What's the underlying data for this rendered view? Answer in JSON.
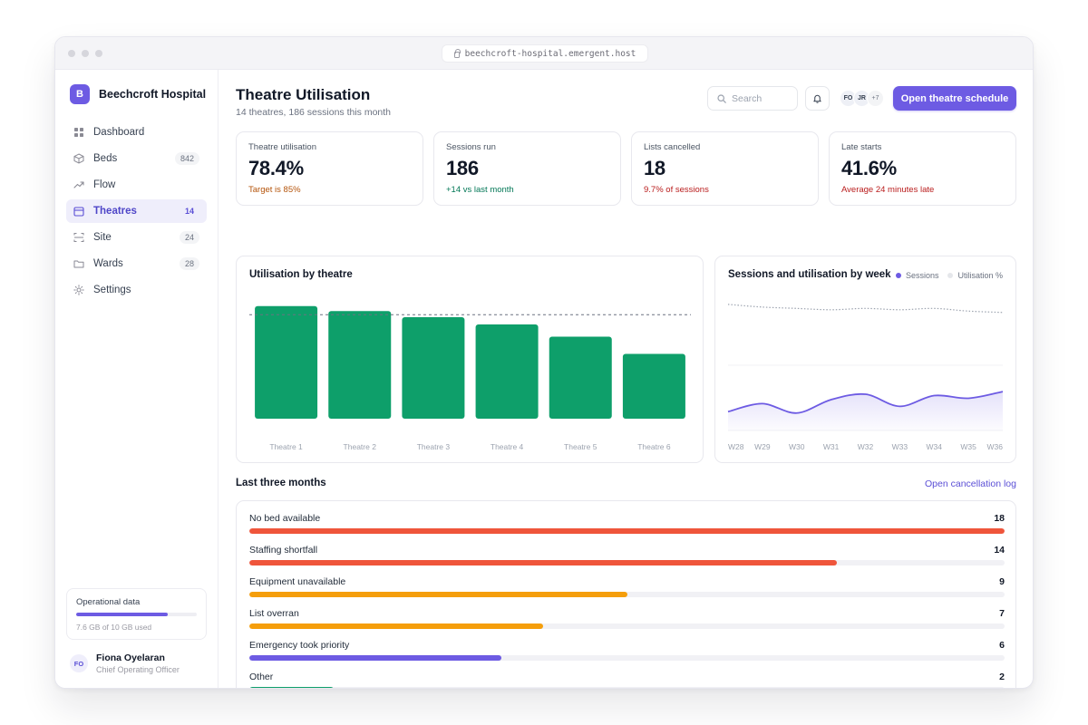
{
  "browser": {
    "url": "beechcroft-hospital.emergent.host"
  },
  "sidebar": {
    "brand_initial": "B",
    "brand_name": "Beechcroft Hospital",
    "items": [
      {
        "label": "Dashboard",
        "icon": "grid-icon",
        "badge": ""
      },
      {
        "label": "Beds",
        "icon": "box-icon",
        "badge": "842"
      },
      {
        "label": "Flow",
        "icon": "trend-icon",
        "badge": ""
      },
      {
        "label": "Theatres",
        "icon": "calendar-icon",
        "badge": "14",
        "active": true
      },
      {
        "label": "Site",
        "icon": "scan-icon",
        "badge": "24"
      },
      {
        "label": "Wards",
        "icon": "folder-icon",
        "badge": "28"
      },
      {
        "label": "Settings",
        "icon": "sun-icon",
        "badge": ""
      }
    ],
    "storage": {
      "title": "Operational data",
      "used_text": "7.6 GB of 10 GB used",
      "used_fraction": 0.76
    },
    "user": {
      "initials": "FO",
      "name": "Fiona Oyelaran",
      "role": "Chief Operating Officer"
    }
  },
  "header": {
    "title": "Theatre Utilisation",
    "subtitle": "14 theatres, 186 sessions this month",
    "search_placeholder": "Search",
    "avatars": [
      "FO",
      "JR"
    ],
    "avatars_more": "+7",
    "cta_label": "Open theatre schedule"
  },
  "kpis": [
    {
      "label": "Theatre utilisation",
      "value": "78.4%",
      "note": "Target is 85%",
      "note_color": "#b45309"
    },
    {
      "label": "Sessions run",
      "value": "186",
      "note": "+14 vs last month",
      "note_color": "#047857"
    },
    {
      "label": "Lists cancelled",
      "value": "18",
      "note": "9.7% of sessions",
      "note_color": "#b91c1c"
    },
    {
      "label": "Late starts",
      "value": "41.6%",
      "note": "Average 24 minutes late",
      "note_color": "#b91c1c"
    }
  ],
  "chart_data": [
    {
      "type": "bar",
      "title": "Utilisation by theatre",
      "categories": [
        "Theatre 1",
        "Theatre 2",
        "Theatre 3",
        "Theatre 4",
        "Theatre 5",
        "Theatre 6"
      ],
      "values": [
        92,
        88,
        83,
        77,
        67,
        53
      ],
      "target": 85,
      "ylim": [
        0,
        100
      ],
      "color": "#0e9f6a"
    },
    {
      "type": "line",
      "title": "Sessions and utilisation by week",
      "x": [
        "W28",
        "W29",
        "W30",
        "W31",
        "W32",
        "W33",
        "W34",
        "W35",
        "W36"
      ],
      "series": [
        {
          "name": "Sessions",
          "values": [
            14,
            20,
            13,
            23,
            27,
            18,
            26,
            24,
            29
          ],
          "color": "#6d5be3",
          "style": "area"
        },
        {
          "name": "Utilisation %",
          "values": [
            94,
            92,
            91,
            90,
            91,
            90,
            91,
            89,
            88
          ],
          "color": "#9ca3af",
          "style": "dotted"
        }
      ],
      "ylim": [
        0,
        100
      ]
    }
  ],
  "cancellations": {
    "title": "Last three months",
    "link": "Open cancellation log",
    "max": 18,
    "items": [
      {
        "label": "No bed available",
        "count": 18,
        "color": "#ef553b"
      },
      {
        "label": "Staffing shortfall",
        "count": 14,
        "color": "#ef553b"
      },
      {
        "label": "Equipment unavailable",
        "count": 9,
        "color": "#f59e0b"
      },
      {
        "label": "List overran",
        "count": 7,
        "color": "#f59e0b"
      },
      {
        "label": "Emergency took priority",
        "count": 6,
        "color": "#6d5be3"
      },
      {
        "label": "Other",
        "count": 2,
        "color": "#0e9f6a"
      }
    ]
  }
}
